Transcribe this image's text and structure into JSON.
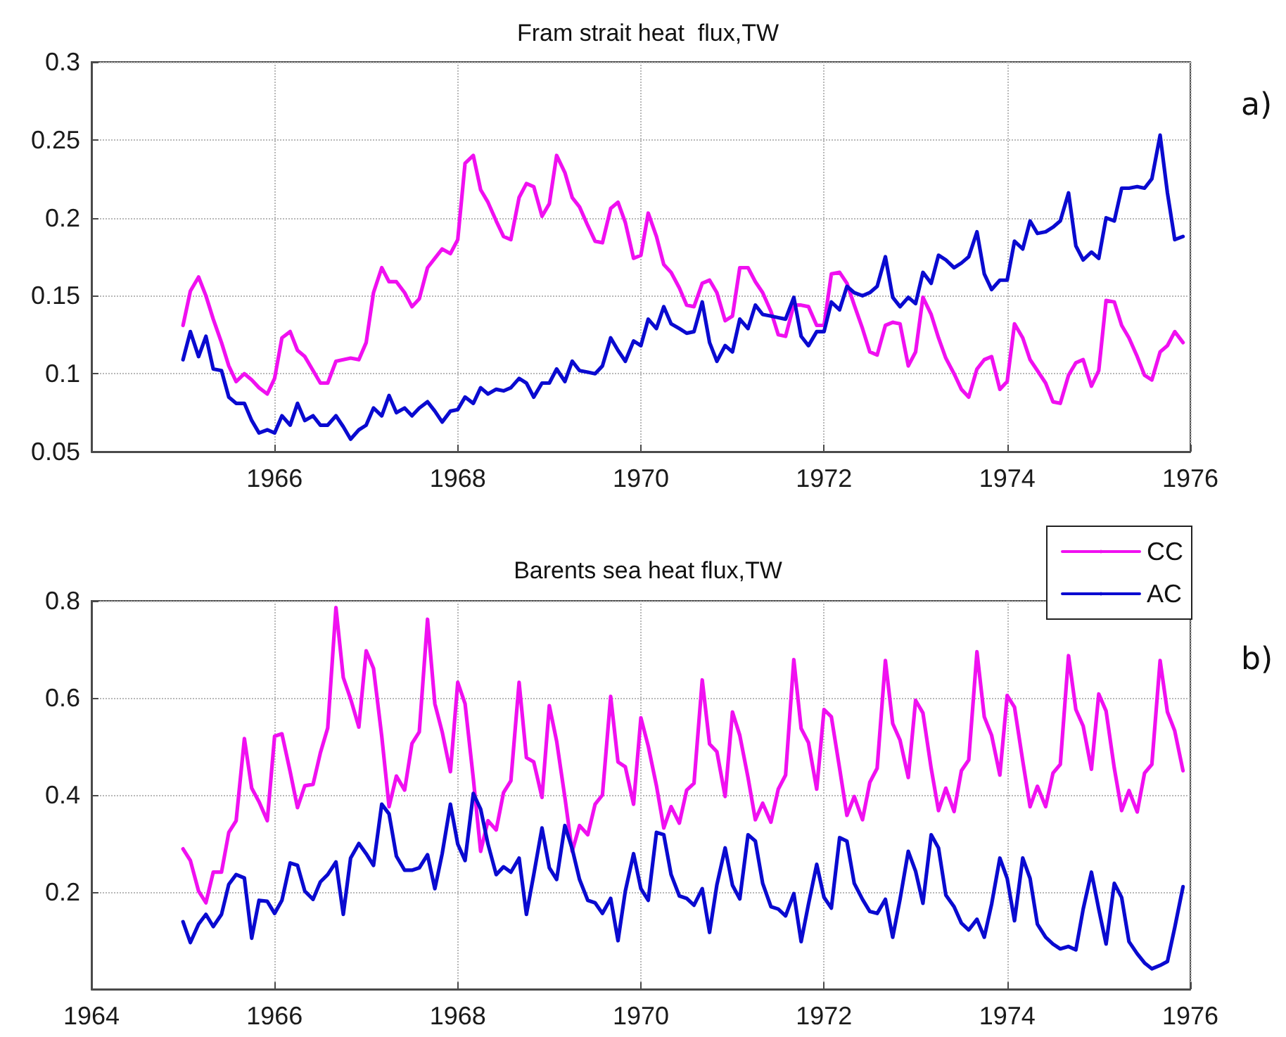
{
  "chart_data": [
    {
      "type": "line",
      "title": "Fram strait heat  flux,TW",
      "annotations": [
        "a)"
      ],
      "x": [
        1965,
        1965.08,
        1965.17,
        1965.25,
        1965.33,
        1965.42,
        1965.5,
        1965.58,
        1965.67,
        1965.75,
        1965.83,
        1965.92,
        1966,
        1966.08,
        1966.17,
        1966.25,
        1966.33,
        1966.42,
        1966.5,
        1966.58,
        1966.67,
        1966.75,
        1966.83,
        1966.92,
        1967,
        1967.08,
        1967.17,
        1967.25,
        1967.33,
        1967.42,
        1967.5,
        1967.58,
        1967.67,
        1967.75,
        1967.83,
        1967.92,
        1968,
        1968.08,
        1968.17,
        1968.25,
        1968.33,
        1968.42,
        1968.5,
        1968.58,
        1968.67,
        1968.75,
        1968.83,
        1968.92,
        1969,
        1969.08,
        1969.17,
        1969.25,
        1969.33,
        1969.42,
        1969.5,
        1969.58,
        1969.67,
        1969.75,
        1969.83,
        1969.92,
        1970,
        1970.08,
        1970.17,
        1970.25,
        1970.33,
        1970.42,
        1970.5,
        1970.58,
        1970.67,
        1970.75,
        1970.83,
        1970.92,
        1971,
        1971.08,
        1971.17,
        1971.25,
        1971.33,
        1971.42,
        1971.5,
        1971.58,
        1971.67,
        1971.75,
        1971.83,
        1971.92,
        1972,
        1972.08,
        1972.17,
        1972.25,
        1972.33,
        1972.42,
        1972.5,
        1972.58,
        1972.67,
        1972.75,
        1972.83,
        1972.92,
        1973,
        1973.08,
        1973.17,
        1973.25,
        1973.33,
        1973.42,
        1973.5,
        1973.58,
        1973.67,
        1973.75,
        1973.83,
        1973.92,
        1974,
        1974.08,
        1974.17,
        1974.25,
        1974.33,
        1974.42,
        1974.5,
        1974.58,
        1974.67,
        1974.75,
        1974.83,
        1974.92,
        1975,
        1975.08,
        1975.17,
        1975.25,
        1975.33,
        1975.42,
        1975.5,
        1975.58,
        1975.67,
        1975.75,
        1975.83,
        1975.92
      ],
      "series": [
        {
          "color": "#f010f0",
          "values": [
            0.131,
            0.153,
            0.162,
            0.15,
            0.135,
            0.12,
            0.105,
            0.095,
            0.1,
            0.096,
            0.091,
            0.087,
            0.097,
            0.123,
            0.127,
            0.115,
            0.111,
            0.102,
            0.094,
            0.094,
            0.108,
            0.109,
            0.11,
            0.109,
            0.12,
            0.152,
            0.168,
            0.159,
            0.159,
            0.152,
            0.143,
            0.148,
            0.168,
            0.174,
            0.18,
            0.177,
            0.186,
            0.235,
            0.24,
            0.218,
            0.21,
            0.198,
            0.188,
            0.186,
            0.213,
            0.222,
            0.22,
            0.201,
            0.209,
            0.24,
            0.229,
            0.213,
            0.207,
            0.195,
            0.185,
            0.184,
            0.206,
            0.21,
            0.197,
            0.174,
            0.176,
            0.203,
            0.188,
            0.17,
            0.165,
            0.155,
            0.144,
            0.143,
            0.158,
            0.16,
            0.152,
            0.134,
            0.137,
            0.168,
            0.168,
            0.159,
            0.152,
            0.14,
            0.125,
            0.124,
            0.144,
            0.144,
            0.143,
            0.131,
            0.131,
            0.164,
            0.165,
            0.158,
            0.144,
            0.129,
            0.114,
            0.112,
            0.131,
            0.133,
            0.132,
            0.105,
            0.114,
            0.149,
            0.138,
            0.123,
            0.11,
            0.1,
            0.09,
            0.085,
            0.103,
            0.109,
            0.111,
            0.09,
            0.095,
            0.132,
            0.123,
            0.109,
            0.102,
            0.094,
            0.082,
            0.081,
            0.099,
            0.107,
            0.109,
            0.092,
            0.102,
            0.147,
            0.146,
            0.131,
            0.123,
            0.111,
            0.099,
            0.096,
            0.114,
            0.118,
            0.127,
            0.12
          ]
        },
        {
          "color": "#0a0ad0",
          "values": [
            0.109,
            0.127,
            0.111,
            0.124,
            0.103,
            0.102,
            0.085,
            0.081,
            0.081,
            0.07,
            0.062,
            0.064,
            0.062,
            0.073,
            0.067,
            0.081,
            0.07,
            0.073,
            0.067,
            0.067,
            0.073,
            0.066,
            0.058,
            0.064,
            0.067,
            0.078,
            0.073,
            0.086,
            0.075,
            0.078,
            0.073,
            0.078,
            0.082,
            0.076,
            0.069,
            0.076,
            0.077,
            0.085,
            0.081,
            0.091,
            0.087,
            0.09,
            0.089,
            0.091,
            0.097,
            0.094,
            0.085,
            0.094,
            0.094,
            0.103,
            0.095,
            0.108,
            0.102,
            0.101,
            0.1,
            0.105,
            0.123,
            0.115,
            0.108,
            0.121,
            0.118,
            0.135,
            0.129,
            0.143,
            0.132,
            0.129,
            0.126,
            0.127,
            0.146,
            0.12,
            0.108,
            0.118,
            0.114,
            0.135,
            0.129,
            0.144,
            0.138,
            0.137,
            0.136,
            0.135,
            0.149,
            0.124,
            0.118,
            0.127,
            0.127,
            0.146,
            0.141,
            0.156,
            0.152,
            0.15,
            0.152,
            0.156,
            0.175,
            0.149,
            0.143,
            0.149,
            0.145,
            0.165,
            0.158,
            0.176,
            0.173,
            0.168,
            0.171,
            0.175,
            0.191,
            0.164,
            0.154,
            0.16,
            0.16,
            0.185,
            0.18,
            0.198,
            0.19,
            0.191,
            0.194,
            0.198,
            0.216,
            0.182,
            0.173,
            0.178,
            0.174,
            0.2,
            0.198,
            0.219,
            0.219,
            0.22,
            0.219,
            0.225,
            0.253,
            0.216,
            0.186,
            0.188
          ]
        }
      ],
      "xlim": [
        1964,
        1976
      ],
      "xticks": [
        1966,
        1968,
        1970,
        1972,
        1974,
        1976
      ],
      "ylim": [
        0.05,
        0.3
      ],
      "yticks": [
        0.05,
        0.1,
        0.15,
        0.2,
        0.25,
        0.3
      ],
      "grid": true
    },
    {
      "type": "line",
      "title": "Barents sea heat flux,TW",
      "annotations": [
        "b)"
      ],
      "x": [
        1965,
        1965.08,
        1965.17,
        1965.25,
        1965.33,
        1965.42,
        1965.5,
        1965.58,
        1965.67,
        1965.75,
        1965.83,
        1965.92,
        1966,
        1966.08,
        1966.17,
        1966.25,
        1966.33,
        1966.42,
        1966.5,
        1966.58,
        1966.67,
        1966.75,
        1966.83,
        1966.92,
        1967,
        1967.08,
        1967.17,
        1967.25,
        1967.33,
        1967.42,
        1967.5,
        1967.58,
        1967.67,
        1967.75,
        1967.83,
        1967.92,
        1968,
        1968.08,
        1968.17,
        1968.25,
        1968.33,
        1968.42,
        1968.5,
        1968.58,
        1968.67,
        1968.75,
        1968.83,
        1968.92,
        1969,
        1969.08,
        1969.17,
        1969.25,
        1969.33,
        1969.42,
        1969.5,
        1969.58,
        1969.67,
        1969.75,
        1969.83,
        1969.92,
        1970,
        1970.08,
        1970.17,
        1970.25,
        1970.33,
        1970.42,
        1970.5,
        1970.58,
        1970.67,
        1970.75,
        1970.83,
        1970.92,
        1971,
        1971.08,
        1971.17,
        1971.25,
        1971.33,
        1971.42,
        1971.5,
        1971.58,
        1971.67,
        1971.75,
        1971.83,
        1971.92,
        1972,
        1972.08,
        1972.17,
        1972.25,
        1972.33,
        1972.42,
        1972.5,
        1972.58,
        1972.67,
        1972.75,
        1972.83,
        1972.92,
        1973,
        1973.08,
        1973.17,
        1973.25,
        1973.33,
        1973.42,
        1973.5,
        1973.58,
        1973.67,
        1973.75,
        1973.83,
        1973.92,
        1974,
        1974.08,
        1974.17,
        1974.25,
        1974.33,
        1974.42,
        1974.5,
        1974.58,
        1974.67,
        1974.75,
        1974.83,
        1974.92,
        1975,
        1975.08,
        1975.17,
        1975.25,
        1975.33,
        1975.42,
        1975.5,
        1975.58,
        1975.67,
        1975.75,
        1975.83,
        1975.92
      ],
      "series": [
        {
          "name": "CC",
          "color": "#f010f0",
          "values": [
            0.289,
            0.265,
            0.202,
            0.178,
            0.241,
            0.241,
            0.323,
            0.347,
            0.516,
            0.414,
            0.386,
            0.347,
            0.521,
            0.526,
            0.448,
            0.374,
            0.419,
            0.422,
            0.487,
            0.538,
            0.786,
            0.642,
            0.598,
            0.54,
            0.697,
            0.661,
            0.521,
            0.376,
            0.439,
            0.41,
            0.506,
            0.53,
            0.762,
            0.588,
            0.53,
            0.448,
            0.632,
            0.588,
            0.434,
            0.284,
            0.347,
            0.328,
            0.405,
            0.429,
            0.632,
            0.477,
            0.468,
            0.395,
            0.584,
            0.511,
            0.395,
            0.284,
            0.337,
            0.318,
            0.381,
            0.4,
            0.603,
            0.468,
            0.458,
            0.381,
            0.559,
            0.501,
            0.419,
            0.332,
            0.376,
            0.342,
            0.41,
            0.424,
            0.637,
            0.505,
            0.489,
            0.397,
            0.571,
            0.523,
            0.436,
            0.349,
            0.383,
            0.344,
            0.412,
            0.441,
            0.679,
            0.537,
            0.508,
            0.412,
            0.576,
            0.561,
            0.455,
            0.358,
            0.397,
            0.349,
            0.426,
            0.455,
            0.677,
            0.547,
            0.513,
            0.436,
            0.595,
            0.569,
            0.455,
            0.368,
            0.414,
            0.366,
            0.45,
            0.472,
            0.695,
            0.561,
            0.523,
            0.441,
            0.605,
            0.581,
            0.47,
            0.376,
            0.418,
            0.376,
            0.445,
            0.463,
            0.687,
            0.576,
            0.542,
            0.453,
            0.608,
            0.573,
            0.455,
            0.368,
            0.409,
            0.365,
            0.445,
            0.463,
            0.677,
            0.571,
            0.532,
            0.45
          ]
        },
        {
          "name": "AC",
          "color": "#0a0ad0",
          "values": [
            0.139,
            0.096,
            0.134,
            0.154,
            0.129,
            0.154,
            0.216,
            0.236,
            0.229,
            0.105,
            0.183,
            0.181,
            0.156,
            0.183,
            0.26,
            0.255,
            0.202,
            0.185,
            0.221,
            0.236,
            0.262,
            0.154,
            0.27,
            0.3,
            0.279,
            0.255,
            0.381,
            0.361,
            0.274,
            0.245,
            0.245,
            0.25,
            0.277,
            0.207,
            0.279,
            0.381,
            0.299,
            0.265,
            0.403,
            0.371,
            0.299,
            0.236,
            0.252,
            0.241,
            0.27,
            0.154,
            0.236,
            0.332,
            0.25,
            0.226,
            0.337,
            0.289,
            0.226,
            0.183,
            0.178,
            0.156,
            0.187,
            0.1,
            0.202,
            0.279,
            0.207,
            0.183,
            0.323,
            0.318,
            0.236,
            0.192,
            0.187,
            0.173,
            0.207,
            0.117,
            0.215,
            0.291,
            0.214,
            0.186,
            0.318,
            0.305,
            0.218,
            0.17,
            0.165,
            0.151,
            0.197,
            0.098,
            0.175,
            0.257,
            0.189,
            0.167,
            0.312,
            0.305,
            0.218,
            0.185,
            0.16,
            0.156,
            0.185,
            0.107,
            0.185,
            0.284,
            0.243,
            0.177,
            0.318,
            0.291,
            0.194,
            0.17,
            0.136,
            0.122,
            0.144,
            0.107,
            0.175,
            0.27,
            0.228,
            0.141,
            0.27,
            0.228,
            0.134,
            0.107,
            0.093,
            0.083,
            0.088,
            0.081,
            0.165,
            0.241,
            0.165,
            0.093,
            0.218,
            0.189,
            0.098,
            0.073,
            0.054,
            0.042,
            0.049,
            0.057,
            0.127,
            0.211
          ]
        }
      ],
      "xlim": [
        1964,
        1976
      ],
      "xticks": [
        1964,
        1966,
        1968,
        1970,
        1972,
        1974,
        1976
      ],
      "ylim": [
        0,
        0.8
      ],
      "yticks": [
        0.2,
        0.4,
        0.6,
        0.8
      ],
      "grid": true,
      "legend": "top right"
    }
  ]
}
